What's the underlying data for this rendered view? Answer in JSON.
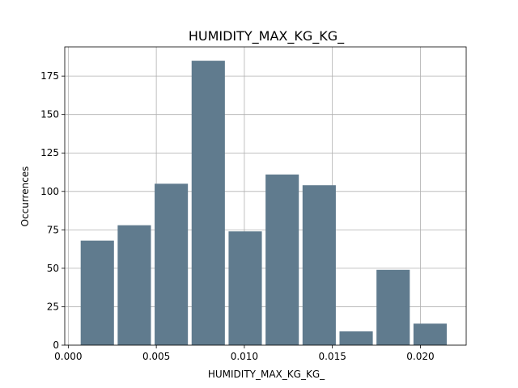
{
  "chart_data": {
    "type": "bar",
    "title": "HUMIDITY_MAX_KG_KG_",
    "xlabel": "HUMIDITY_MAX_KG_KG_",
    "ylabel": "Occurrences",
    "bar_color": "#607b8e",
    "grid": true,
    "xlim": [
      -0.0002,
      0.0226
    ],
    "ylim": [
      0,
      194
    ],
    "xticks": [
      {
        "value": 0.0,
        "label": "0.000"
      },
      {
        "value": 0.005,
        "label": "0.005"
      },
      {
        "value": 0.01,
        "label": "0.010"
      },
      {
        "value": 0.015,
        "label": "0.015"
      },
      {
        "value": 0.02,
        "label": "0.020"
      }
    ],
    "yticks": [
      {
        "value": 0,
        "label": "0"
      },
      {
        "value": 25,
        "label": "25"
      },
      {
        "value": 50,
        "label": "50"
      },
      {
        "value": 75,
        "label": "75"
      },
      {
        "value": 100,
        "label": "100"
      },
      {
        "value": 125,
        "label": "125"
      },
      {
        "value": 150,
        "label": "150"
      },
      {
        "value": 175,
        "label": "175"
      }
    ],
    "bins": [
      {
        "start": 0.0006,
        "end": 0.0027,
        "value": 68
      },
      {
        "start": 0.0027,
        "end": 0.0048,
        "value": 78
      },
      {
        "start": 0.0048,
        "end": 0.0069,
        "value": 105
      },
      {
        "start": 0.0069,
        "end": 0.009,
        "value": 185
      },
      {
        "start": 0.009,
        "end": 0.0111,
        "value": 74
      },
      {
        "start": 0.0111,
        "end": 0.0132,
        "value": 111
      },
      {
        "start": 0.0132,
        "end": 0.0153,
        "value": 104
      },
      {
        "start": 0.0153,
        "end": 0.0174,
        "value": 9
      },
      {
        "start": 0.0174,
        "end": 0.0195,
        "value": 49
      },
      {
        "start": 0.0195,
        "end": 0.0216,
        "value": 14
      }
    ]
  }
}
